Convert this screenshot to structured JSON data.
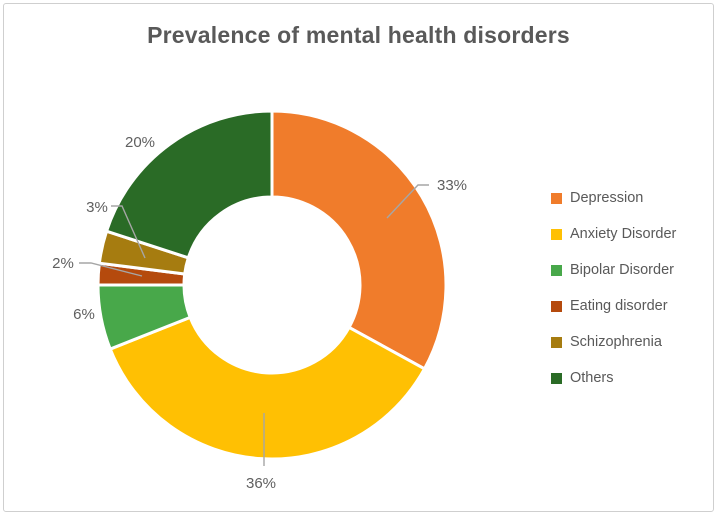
{
  "chart_data": {
    "type": "pie",
    "subtype": "donut",
    "title": "Prevalence of mental health disorders",
    "categories": [
      "Depression",
      "Anxiety Disorder",
      "Bipolar Disorder",
      "Eating disorder",
      "Schizophrenia",
      "Others"
    ],
    "values": [
      33,
      36,
      6,
      2,
      3,
      20
    ],
    "data_labels": [
      "33%",
      "36%",
      "6%",
      "2%",
      "3%",
      "20%"
    ],
    "unit": "%",
    "colors": [
      "#F07C2B",
      "#FFC003",
      "#48A84A",
      "#B54A0D",
      "#A67C10",
      "#2A6B26"
    ],
    "start_angle_deg": 0,
    "direction": "clockwise",
    "hole_radius_ratio": 0.5,
    "legend_position": "right",
    "grid": false
  },
  "styles": {
    "title_color": "#595959",
    "data_label_color": "#5F5F5F",
    "leader_line_color": "#A6A6A6",
    "legend_text_color": "#595959",
    "slice_gap_color": "#FFFFFF",
    "border_color": "#CFCFCF",
    "background_color": "#FFFFFF"
  }
}
